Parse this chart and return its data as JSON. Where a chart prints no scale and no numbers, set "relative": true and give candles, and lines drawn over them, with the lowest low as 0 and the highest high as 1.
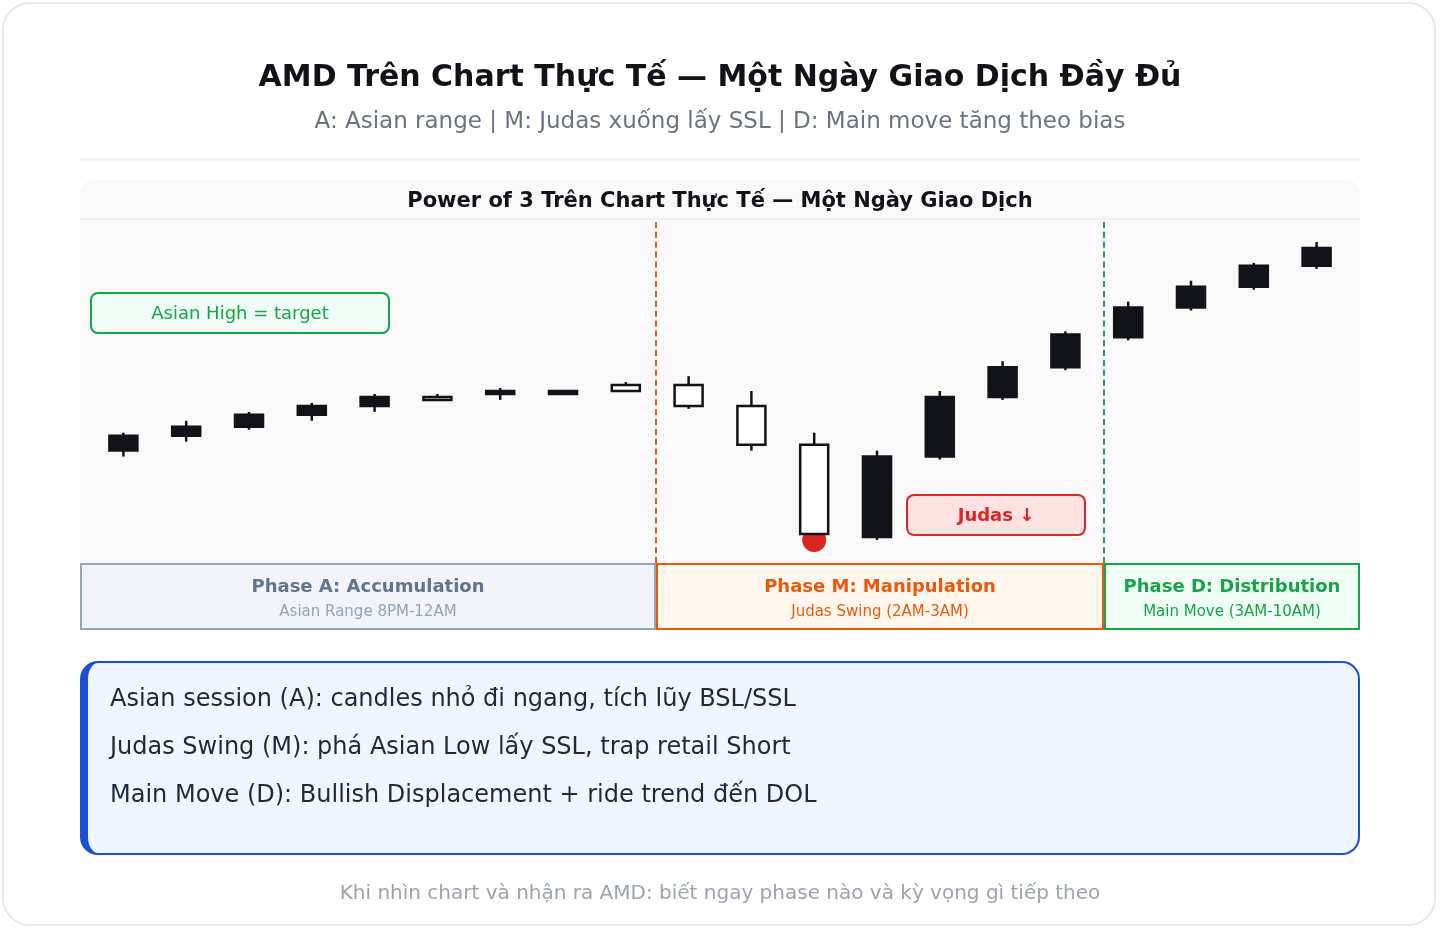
{
  "chart_data": {
    "type": "candlestick",
    "title": "AMD Trên Chart Thực Tế — Một Ngày Giao Dịch Đầy Đủ",
    "subtitle": "A: Asian range | M: Judas xuống lấy SSL | D: Main move tăng theo bias",
    "relative": true,
    "tick_labels": false,
    "categories": [
      null,
      null,
      null,
      null,
      null,
      null,
      null,
      null,
      null,
      null,
      null,
      null,
      null,
      null,
      null,
      null,
      null,
      null,
      null,
      null
    ],
    "ohlc": [
      [
        0.3,
        0.36,
        0.28,
        0.35
      ],
      [
        0.35,
        0.4,
        0.33,
        0.38
      ],
      [
        0.38,
        0.43,
        0.37,
        0.42
      ],
      [
        0.42,
        0.46,
        0.4,
        0.45
      ],
      [
        0.45,
        0.49,
        0.43,
        0.48
      ],
      [
        0.48,
        0.49,
        0.47,
        0.47
      ],
      [
        0.49,
        0.51,
        0.47,
        0.5
      ],
      [
        0.49,
        0.5,
        0.49,
        0.5
      ],
      [
        0.52,
        0.53,
        0.5,
        0.5
      ],
      [
        0.52,
        0.55,
        0.44,
        0.45
      ],
      [
        0.45,
        0.5,
        0.3,
        0.32
      ],
      [
        0.32,
        0.36,
        0.02,
        0.02
      ],
      [
        0.01,
        0.3,
        0,
        0.28
      ],
      [
        0.28,
        0.5,
        0.27,
        0.48
      ],
      [
        0.48,
        0.6,
        0.47,
        0.58
      ],
      [
        0.58,
        0.7,
        0.57,
        0.69
      ],
      [
        0.68,
        0.8,
        0.67,
        0.78
      ],
      [
        0.78,
        0.87,
        0.77,
        0.85
      ],
      [
        0.85,
        0.93,
        0.84,
        0.92
      ],
      [
        0.92,
        1,
        0.91,
        0.98
      ]
    ],
    "colors": [
      "#111318",
      "#111318",
      "#111318",
      "#111318",
      "#111318",
      "#ffffff",
      "#111318",
      "#111318",
      "#ffffff",
      "#ffffff",
      "#ffffff",
      "#ffffff",
      "#111318",
      "#111318",
      "#111318",
      "#111318",
      "#111318",
      "#111318",
      "#111318",
      "#111318"
    ],
    "series": [
      {
        "type": "scatter",
        "color": "#dc2626",
        "values": [
          null,
          null,
          null,
          null,
          null,
          null,
          null,
          null,
          null,
          null,
          null,
          0,
          null,
          null,
          null,
          null,
          null,
          null,
          null,
          null
        ]
      }
    ],
    "annotations": [
      "Power of 3 Trên Chart Thực Tế — Một Ngày Giao Dịch",
      "Phase A: Accumulation",
      "Asian Range 8PM-12AM",
      "Phase M: Manipulation",
      "Judas Swing (2AM-3AM)",
      "Phase D: Distribution",
      "Main Move (3AM-10AM)",
      "Asian High = target",
      "Judas ↓",
      "Asian session (A): candles nhỏ đi ngang, tích lũy BSL/SSL",
      "Judas Swing (M): phá Asian Low lấy SSL, trap retail Short",
      "Main Move (D): Bullish Displacement + ride trend đến DOL",
      "Khi nhìn chart và nhận ra AMD: biết ngay phase nào và kỳ vọng gì tiếp theo"
    ]
  }
}
